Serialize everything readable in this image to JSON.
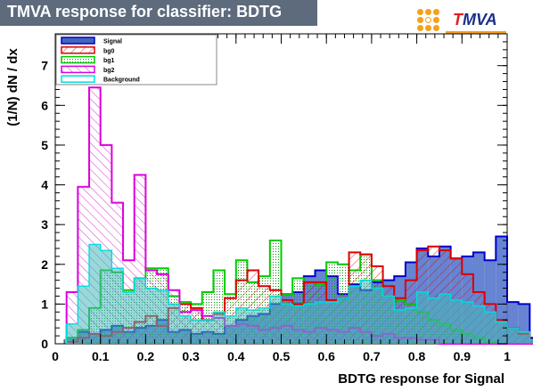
{
  "header": {
    "title": "TMVA response for classifier: BDTG",
    "logo_prefix": "T",
    "logo_suffix": "MVA"
  },
  "chart_data": {
    "type": "histogram",
    "xlabel": "BDTG response for Signal",
    "ylabel": "(1/N) dN / dx",
    "xlim": [
      0,
      1
    ],
    "ylim": [
      0,
      7.8
    ],
    "xticks": [
      0,
      0.1,
      0.2,
      0.3,
      0.4,
      0.5,
      0.6,
      0.7,
      0.8,
      0.9,
      1
    ],
    "xtick_labels": [
      "0",
      "0.1",
      "0.2",
      "0.3",
      "0.4",
      "0.5",
      "0.6",
      "0.7",
      "0.8",
      "0.9",
      "1"
    ],
    "yticks": [
      0,
      1,
      2,
      3,
      4,
      5,
      6,
      7
    ],
    "ytick_labels": [
      "0",
      "1",
      "2",
      "3",
      "4",
      "5",
      "6",
      "7"
    ],
    "grid": false,
    "legend_position": "top-left",
    "bin_low": 0.025,
    "bin_width": 0.025,
    "series": [
      {
        "name": "Signal",
        "color": "#0000cc",
        "fill": "#5577cc",
        "style": "solid",
        "values": [
          0.15,
          0.3,
          0.25,
          0.35,
          0.45,
          0.3,
          0.4,
          0.45,
          0.6,
          0.3,
          0.35,
          0.25,
          0.3,
          0.25,
          0.45,
          0.6,
          0.7,
          0.75,
          1.0,
          1.25,
          1.3,
          1.7,
          1.85,
          1.7,
          1.25,
          1.5,
          1.35,
          1.55,
          1.6,
          1.7,
          2.05,
          2.4,
          2.2,
          2.45,
          2.15,
          2.2,
          2.3,
          2.1,
          2.7,
          1.05,
          1.0,
          0.15,
          0.05
        ]
      },
      {
        "name": "bg0",
        "color": "#dd0000",
        "fill": "#dd0000",
        "style": "hatch-ne",
        "values": [
          0.05,
          0.15,
          0.25,
          0.2,
          0.3,
          0.4,
          0.55,
          0.7,
          0.45,
          0.9,
          1.0,
          0.9,
          0.6,
          0.75,
          1.15,
          1.6,
          1.85,
          1.45,
          1.35,
          1.1,
          1.0,
          1.55,
          1.55,
          1.1,
          1.15,
          2.3,
          2.25,
          1.95,
          1.45,
          1.15,
          1.6,
          2.35,
          2.45,
          2.35,
          2.15,
          1.75,
          1.3,
          1.0,
          0.6,
          0.4,
          0.25,
          0.1,
          0.0
        ]
      },
      {
        "name": "bg1",
        "color": "#00cc00",
        "fill": "#00aa00",
        "style": "dots",
        "values": [
          0.15,
          0.35,
          0.9,
          1.85,
          1.8,
          1.35,
          1.65,
          1.9,
          1.9,
          1.2,
          1.05,
          1.0,
          1.3,
          1.85,
          1.25,
          2.1,
          1.55,
          1.7,
          2.6,
          1.25,
          1.65,
          1.55,
          1.5,
          2.05,
          2.0,
          1.85,
          2.25,
          1.6,
          1.2,
          1.1,
          1.0,
          0.8,
          0.6,
          0.5,
          0.35,
          0.25,
          0.15,
          0.05,
          0.0,
          0.0,
          0.0,
          0.0,
          0.0
        ]
      },
      {
        "name": "bg2",
        "color": "#dd00dd",
        "fill": "#cc00cc",
        "style": "hatch-nw",
        "values": [
          1.3,
          3.95,
          6.45,
          5.0,
          3.55,
          2.1,
          4.25,
          1.85,
          1.75,
          1.35,
          0.8,
          0.85,
          0.7,
          0.65,
          0.45,
          0.5,
          0.45,
          0.35,
          0.4,
          0.45,
          0.35,
          0.3,
          0.4,
          0.35,
          0.3,
          0.4,
          0.3,
          0.2,
          0.25,
          0.15,
          0.15,
          0.1,
          0.1,
          0.0,
          0.0,
          0.0,
          0.0,
          0.0,
          0.0,
          0.0,
          0.0,
          0.0,
          0.0
        ]
      },
      {
        "name": "Background",
        "color": "#00dddd",
        "fill": "#44bbbb",
        "style": "overlay",
        "values": [
          0.5,
          1.45,
          2.5,
          2.35,
          1.9,
          1.3,
          1.65,
          1.4,
          1.35,
          1.0,
          0.7,
          0.6,
          0.6,
          0.8,
          0.7,
          0.9,
          0.85,
          0.9,
          1.2,
          1.0,
          0.95,
          1.0,
          1.05,
          1.05,
          1.15,
          1.45,
          1.6,
          1.4,
          1.2,
          0.85,
          0.9,
          1.3,
          1.15,
          1.25,
          1.1,
          1.05,
          0.95,
          0.8,
          0.55,
          0.4,
          0.3,
          0.1,
          0.0
        ]
      }
    ]
  }
}
